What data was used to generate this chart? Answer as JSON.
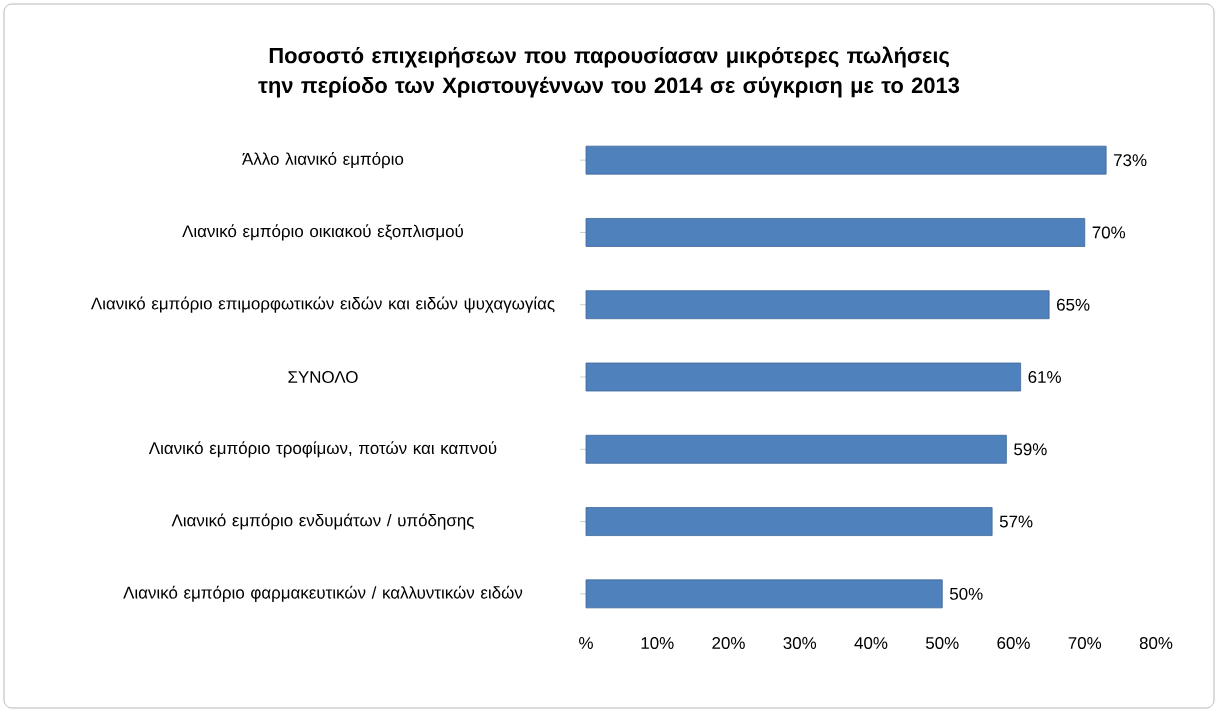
{
  "chart_data": {
    "type": "bar",
    "orientation": "horizontal",
    "title": "Ποσοστό επιχειρήσεων που παρουσίασαν μικρότερες πωλήσεις την περίοδο των Χριστουγέννων του 2014 σε σύγκριση με το 2013",
    "categories": [
      "Άλλο λιανικό εμπόριο",
      "Λιανικό εμπόριο οικιακού εξοπλισμού",
      "Λιανικό εμπόριο επιμορφωτικών ειδών και ειδών ψυχαγωγίας",
      "ΣΥΝΟΛΟ",
      "Λιανικό εμπόριο τροφίμων, ποτών και καπνού",
      "Λιανικό εμπόριο ενδυμάτων / υπόδησης",
      "Λιανικό εμπόριο φαρμακευτικών / καλλυντικών ειδών"
    ],
    "values": [
      73,
      70,
      65,
      61,
      59,
      57,
      50
    ],
    "value_labels": [
      "73%",
      "70%",
      "65%",
      "61%",
      "59%",
      "57%",
      "50%"
    ],
    "color": "#4f81bd",
    "xlim": [
      0,
      80
    ],
    "xticks": [
      {
        "value": 0,
        "label": "%"
      },
      {
        "value": 10,
        "label": "10%"
      },
      {
        "value": 20,
        "label": "20%"
      },
      {
        "value": 30,
        "label": "30%"
      },
      {
        "value": 40,
        "label": "40%"
      },
      {
        "value": 50,
        "label": "50%"
      },
      {
        "value": 60,
        "label": "60%"
      },
      {
        "value": 70,
        "label": "70%"
      },
      {
        "value": 80,
        "label": "80%"
      }
    ],
    "grid": false,
    "legend": false
  }
}
